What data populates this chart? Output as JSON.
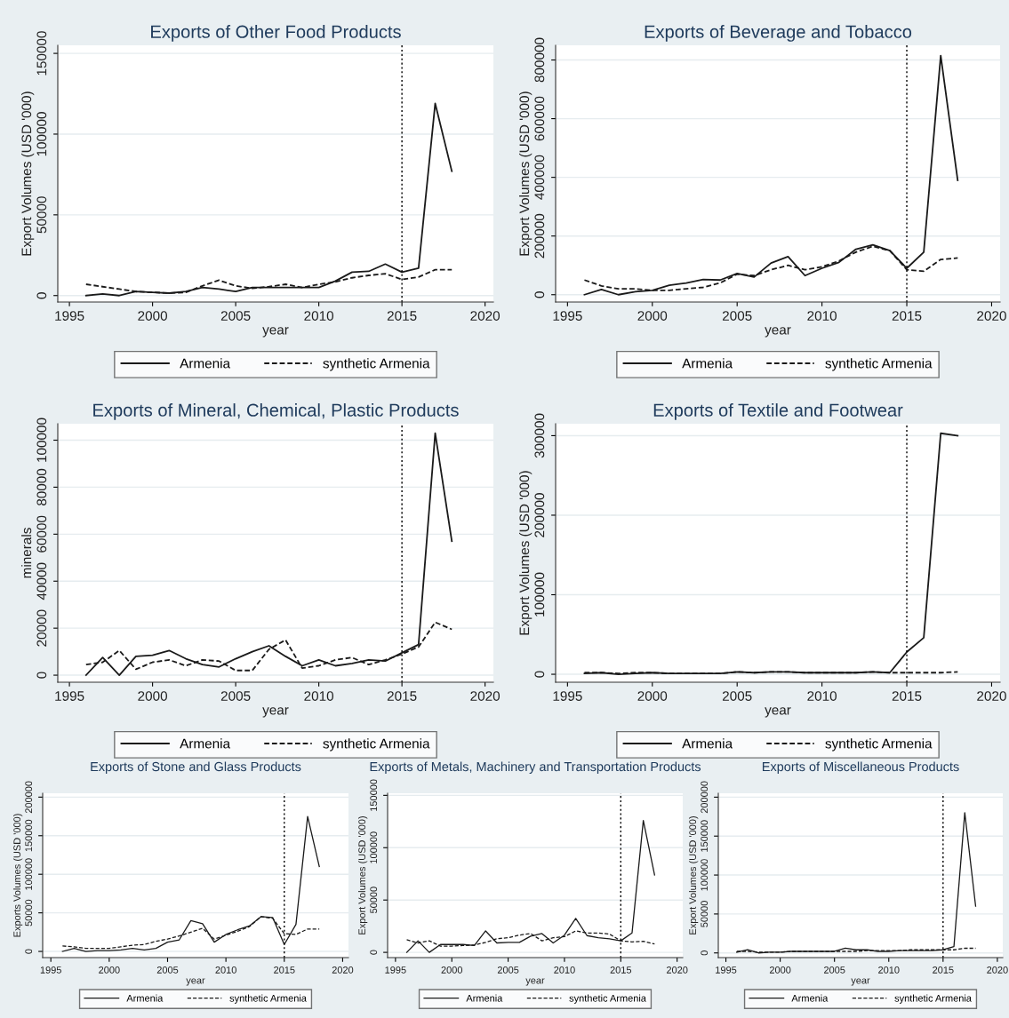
{
  "chart_data": [
    {
      "type": "line",
      "title": "Exports of Other Food Products",
      "xlabel": "year",
      "ylabel": "Export Volumes (USD '000)",
      "xlim": [
        1994.3,
        2020.5
      ],
      "xticks": [
        1995,
        2000,
        2005,
        2010,
        2015,
        2020
      ],
      "ylim": [
        -4000,
        155000
      ],
      "yticks": [
        0,
        50000,
        100000,
        150000
      ],
      "grid": "y",
      "legend": "bottom",
      "marker": "none",
      "x": [
        1996,
        1997,
        1998,
        1999,
        2000,
        2001,
        2002,
        2003,
        2004,
        2005,
        2006,
        2007,
        2008,
        2009,
        2010,
        2011,
        2012,
        2013,
        2014,
        2015,
        2016,
        2017,
        2018
      ],
      "ref_lines": [
        {
          "axis": "x",
          "value": 2015,
          "color": "#000000",
          "line_style": "dotted"
        }
      ],
      "series": [
        {
          "name": "Armenia",
          "color": "#1a1a1a",
          "line_style": "solid",
          "values": [
            0,
            1000,
            0,
            2500,
            2000,
            1500,
            2500,
            5000,
            4000,
            2500,
            5000,
            5000,
            5000,
            5000,
            5000,
            9000,
            14500,
            15000,
            19500,
            14500,
            17000,
            119000,
            77000
          ]
        },
        {
          "name": "synthetic Armenia",
          "color": "#1a1a1a",
          "line_style": "dashed",
          "values": [
            7000,
            5500,
            4000,
            2500,
            2000,
            1500,
            2000,
            6000,
            9500,
            6000,
            4500,
            5500,
            7000,
            5000,
            7000,
            8500,
            11000,
            12500,
            13500,
            10000,
            11500,
            16000,
            16000
          ]
        }
      ]
    },
    {
      "type": "line",
      "title": "Exports of Beverage and Tobacco",
      "xlabel": "year",
      "ylabel": "Export Volumes (USD '000)",
      "xlim": [
        1994.3,
        2020.5
      ],
      "xticks": [
        1995,
        2000,
        2005,
        2010,
        2015,
        2020
      ],
      "ylim": [
        -25000,
        850000
      ],
      "yticks": [
        0,
        200000,
        400000,
        600000,
        800000
      ],
      "grid": "y",
      "legend": "bottom",
      "marker": "none",
      "x": [
        1996,
        1997,
        1998,
        1999,
        2000,
        2001,
        2002,
        2003,
        2004,
        2005,
        2006,
        2007,
        2008,
        2009,
        2010,
        2011,
        2012,
        2013,
        2014,
        2015,
        2016,
        2017,
        2018
      ],
      "ref_lines": [
        {
          "axis": "x",
          "value": 2015,
          "color": "#000000",
          "line_style": "dotted"
        }
      ],
      "series": [
        {
          "name": "Armenia",
          "color": "#1a1a1a",
          "line_style": "solid",
          "values": [
            0,
            18000,
            0,
            10000,
            15000,
            32000,
            40000,
            52000,
            50000,
            72000,
            60000,
            108000,
            130000,
            65000,
            90000,
            110000,
            155000,
            170000,
            150000,
            90000,
            145000,
            815000,
            390000
          ]
        },
        {
          "name": "synthetic Armenia",
          "color": "#1a1a1a",
          "line_style": "dashed",
          "values": [
            50000,
            30000,
            20000,
            20000,
            15000,
            15000,
            20000,
            25000,
            40000,
            70000,
            65000,
            85000,
            100000,
            85000,
            95000,
            115000,
            145000,
            165000,
            150000,
            85000,
            80000,
            120000,
            125000
          ]
        }
      ]
    },
    {
      "type": "line",
      "title": "Exports of Mineral, Chemical, Plastic Products",
      "xlabel": "year",
      "ylabel": "minerals",
      "xlim": [
        1994.3,
        2020.5
      ],
      "xticks": [
        1995,
        2000,
        2005,
        2010,
        2015,
        2020
      ],
      "ylim": [
        -3000,
        107000
      ],
      "yticks": [
        0,
        20000,
        40000,
        60000,
        80000,
        100000
      ],
      "grid": "y",
      "legend": "bottom",
      "marker": "none",
      "x": [
        1996,
        1997,
        1998,
        1999,
        2000,
        2001,
        2002,
        2003,
        2004,
        2005,
        2006,
        2007,
        2008,
        2009,
        2010,
        2011,
        2012,
        2013,
        2014,
        2015,
        2016,
        2017,
        2018
      ],
      "ref_lines": [
        {
          "axis": "x",
          "value": 2015,
          "color": "#000000",
          "line_style": "dotted"
        }
      ],
      "series": [
        {
          "name": "Armenia",
          "color": "#1a1a1a",
          "line_style": "solid",
          "values": [
            0,
            7500,
            0,
            8000,
            8500,
            10500,
            7000,
            4500,
            3500,
            7000,
            10000,
            12500,
            8000,
            4000,
            6500,
            4000,
            5000,
            6500,
            6000,
            9500,
            13000,
            103000,
            57000
          ]
        },
        {
          "name": "synthetic Armenia",
          "color": "#1a1a1a",
          "line_style": "dashed",
          "values": [
            4500,
            5500,
            10500,
            2500,
            5500,
            6500,
            4000,
            6500,
            6000,
            2000,
            2000,
            11000,
            15000,
            3000,
            4000,
            6500,
            7500,
            4500,
            6500,
            9000,
            12000,
            22500,
            19500
          ]
        }
      ]
    },
    {
      "type": "line",
      "title": "Exports of Textile and Footwear",
      "xlabel": "year",
      "ylabel": "Export Volumes (USD '000)",
      "xlim": [
        1994.3,
        2020.5
      ],
      "xticks": [
        1995,
        2000,
        2005,
        2010,
        2015,
        2020
      ],
      "ylim": [
        -10000,
        315000
      ],
      "yticks": [
        0,
        100000,
        200000,
        300000
      ],
      "grid": "y",
      "legend": "bottom",
      "marker": "none",
      "x": [
        1996,
        1997,
        1998,
        1999,
        2000,
        2001,
        2002,
        2003,
        2004,
        2005,
        2006,
        2007,
        2008,
        2009,
        2010,
        2011,
        2012,
        2013,
        2014,
        2015,
        2016,
        2017,
        2018
      ],
      "ref_lines": [
        {
          "axis": "x",
          "value": 2015,
          "color": "#000000",
          "line_style": "dotted"
        }
      ],
      "series": [
        {
          "name": "Armenia",
          "color": "#1a1a1a",
          "line_style": "solid",
          "values": [
            1000,
            2000,
            0,
            1000,
            2000,
            1000,
            1000,
            1000,
            1000,
            3000,
            2000,
            3000,
            3000,
            2000,
            2000,
            2000,
            2000,
            3000,
            2000,
            28000,
            46000,
            303000,
            300000
          ]
        },
        {
          "name": "synthetic Armenia",
          "color": "#1a1a1a",
          "line_style": "dashed",
          "values": [
            2000,
            2000,
            1000,
            2000,
            2000,
            1000,
            1000,
            1000,
            1000,
            3000,
            2000,
            3000,
            3000,
            2000,
            2000,
            2000,
            2000,
            3000,
            2000,
            2000,
            2000,
            2000,
            3000
          ]
        }
      ]
    },
    {
      "type": "line",
      "title": "Exports of Stone and Glass Products",
      "xlabel": "year",
      "ylabel": "Exports Volumes (USD '000)",
      "xlim": [
        1994.3,
        2020.5
      ],
      "xticks": [
        1995,
        2000,
        2005,
        2010,
        2015,
        2020
      ],
      "ylim": [
        -8000,
        205000
      ],
      "yticks": [
        0,
        50000,
        100000,
        150000,
        200000
      ],
      "grid": "y",
      "legend": "bottom",
      "marker": "none",
      "x": [
        1996,
        1997,
        1998,
        1999,
        2000,
        2001,
        2002,
        2003,
        2004,
        2005,
        2006,
        2007,
        2008,
        2009,
        2010,
        2011,
        2012,
        2013,
        2014,
        2015,
        2016,
        2017,
        2018
      ],
      "ref_lines": [
        {
          "axis": "x",
          "value": 2015,
          "color": "#000000",
          "line_style": "dotted"
        }
      ],
      "series": [
        {
          "name": "Armenia",
          "color": "#1a1a1a",
          "line_style": "solid",
          "values": [
            0,
            4000,
            0,
            1000,
            1000,
            2000,
            4000,
            2000,
            4000,
            12000,
            15000,
            40000,
            36000,
            12000,
            22000,
            28000,
            33000,
            45000,
            44000,
            9000,
            35000,
            175000,
            110000
          ]
        },
        {
          "name": "synthetic Armenia",
          "color": "#1a1a1a",
          "line_style": "dashed",
          "values": [
            7000,
            6000,
            4000,
            4000,
            4000,
            6000,
            8000,
            9000,
            13000,
            16000,
            20000,
            25000,
            30000,
            16000,
            21000,
            26000,
            32000,
            45000,
            43000,
            23000,
            22000,
            29000,
            29000
          ]
        }
      ]
    },
    {
      "type": "line",
      "title": "Exports of Metals, Machinery and Transportation Products",
      "xlabel": "year",
      "ylabel": "Export Volumes (USD '000)",
      "xlim": [
        1994.3,
        2020.5
      ],
      "xticks": [
        1995,
        2000,
        2005,
        2010,
        2015,
        2020
      ],
      "ylim": [
        -5000,
        152000
      ],
      "yticks": [
        0,
        50000,
        100000,
        150000
      ],
      "grid": "y",
      "legend": "bottom",
      "marker": "none",
      "x": [
        1996,
        1997,
        1998,
        1999,
        2000,
        2001,
        2002,
        2003,
        2004,
        2005,
        2006,
        2007,
        2008,
        2009,
        2010,
        2011,
        2012,
        2013,
        2014,
        2015,
        2016,
        2017,
        2018
      ],
      "ref_lines": [
        {
          "axis": "x",
          "value": 2015,
          "color": "#000000",
          "line_style": "dotted"
        }
      ],
      "series": [
        {
          "name": "Armenia",
          "color": "#1a1a1a",
          "line_style": "solid",
          "values": [
            0,
            11000,
            0,
            7500,
            7500,
            7500,
            6500,
            20500,
            9000,
            9500,
            9500,
            15500,
            18000,
            9000,
            16500,
            32500,
            16000,
            14000,
            13000,
            11000,
            18500,
            126000,
            74000
          ]
        },
        {
          "name": "synthetic Armenia",
          "color": "#1a1a1a",
          "line_style": "dashed",
          "values": [
            12000,
            9000,
            11000,
            6000,
            6000,
            6500,
            7000,
            9500,
            13000,
            14000,
            16500,
            18000,
            11000,
            14000,
            15000,
            20500,
            18500,
            18500,
            17500,
            11000,
            10000,
            10500,
            8000
          ]
        }
      ]
    },
    {
      "type": "line",
      "title": "Exports of Miscellaneous Products",
      "xlabel": "year",
      "ylabel": "Export Volumes (USD '000)",
      "xlim": [
        1994.3,
        2020.5
      ],
      "xticks": [
        1995,
        2000,
        2005,
        2010,
        2015,
        2020
      ],
      "ylim": [
        -6000,
        205000
      ],
      "yticks": [
        0,
        50000,
        100000,
        150000,
        200000
      ],
      "grid": "y",
      "legend": "bottom",
      "marker": "none",
      "x": [
        1996,
        1997,
        1998,
        1999,
        2000,
        2001,
        2002,
        2003,
        2004,
        2005,
        2006,
        2007,
        2008,
        2009,
        2010,
        2011,
        2012,
        2013,
        2014,
        2015,
        2016,
        2017,
        2018
      ],
      "ref_lines": [
        {
          "axis": "x",
          "value": 2015,
          "color": "#000000",
          "line_style": "dotted"
        }
      ],
      "series": [
        {
          "name": "Armenia",
          "color": "#1a1a1a",
          "line_style": "solid",
          "values": [
            1000,
            4000,
            0,
            1000,
            1000,
            2000,
            2000,
            2000,
            2000,
            2000,
            6000,
            4000,
            4000,
            2000,
            2000,
            3000,
            3000,
            3000,
            3000,
            4000,
            8000,
            180000,
            60000
          ]
        },
        {
          "name": "synthetic Armenia",
          "color": "#1a1a1a",
          "line_style": "dashed",
          "values": [
            2000,
            2000,
            1000,
            1000,
            1000,
            2000,
            2000,
            2000,
            2000,
            2000,
            2000,
            2000,
            3000,
            3000,
            3000,
            3000,
            4000,
            4000,
            4000,
            4000,
            4000,
            6000,
            6000
          ]
        }
      ]
    }
  ]
}
